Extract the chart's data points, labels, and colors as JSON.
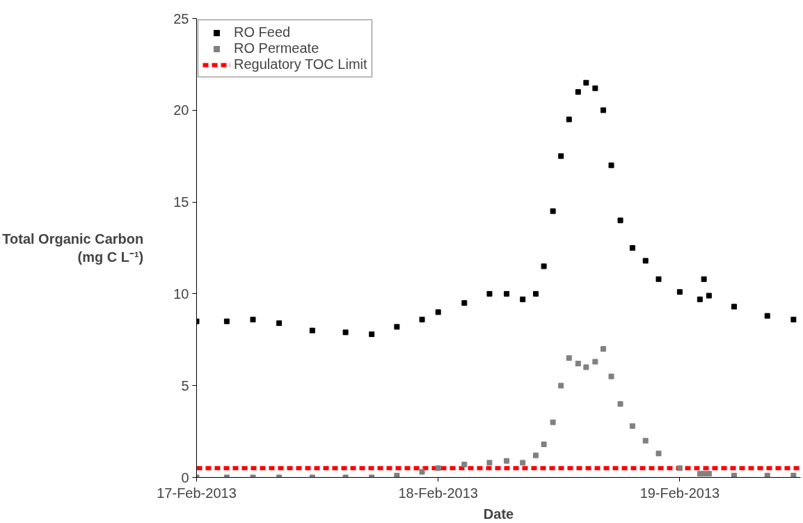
{
  "chart_data": {
    "type": "scatter",
    "marker": "square",
    "xlabel": "Date",
    "ylabel": "Total Organic Carbon (mg C L⁻¹)",
    "x": [
      "2013-02-17T00:00",
      "2013-02-17T03:00",
      "2013-02-17T05:36",
      "2013-02-17T08:12",
      "2013-02-17T11:30",
      "2013-02-17T14:48",
      "2013-02-17T17:24",
      "2013-02-17T19:54",
      "2013-02-17T22:24",
      "2013-02-18T00:00",
      "2013-02-18T02:36",
      "2013-02-18T05:06",
      "2013-02-18T06:48",
      "2013-02-18T08:24",
      "2013-02-18T09:42",
      "2013-02-18T10:30",
      "2013-02-18T11:24",
      "2013-02-18T12:12",
      "2013-02-18T13:00",
      "2013-02-18T13:54",
      "2013-02-18T14:42",
      "2013-02-18T15:36",
      "2013-02-18T16:24",
      "2013-02-18T17:12",
      "2013-02-18T18:06",
      "2013-02-18T19:18",
      "2013-02-18T20:36",
      "2013-02-18T21:54",
      "2013-02-19T00:00",
      "2013-02-19T02:00",
      "2013-02-19T02:24",
      "2013-02-19T02:54",
      "2013-02-19T05:24",
      "2013-02-19T08:42",
      "2013-02-19T11:18"
    ],
    "series": [
      {
        "name": "RO Feed",
        "color": "#000000",
        "values": [
          8.5,
          8.5,
          8.6,
          8.4,
          8.0,
          7.9,
          7.8,
          8.2,
          8.6,
          9.0,
          9.5,
          10.0,
          10.0,
          9.7,
          10.0,
          11.5,
          14.5,
          17.5,
          19.5,
          21.0,
          21.5,
          21.2,
          20.0,
          17.0,
          14.0,
          12.5,
          11.8,
          10.8,
          10.1,
          9.7,
          10.8,
          9.9,
          9.3,
          8.8,
          8.6
        ]
      },
      {
        "name": "RO Permeate",
        "color": "#808080",
        "values": [
          0,
          0,
          0,
          0,
          0,
          0,
          0,
          0.1,
          0.3,
          0.5,
          0.7,
          0.8,
          0.9,
          0.8,
          1.2,
          1.8,
          3.0,
          5.0,
          6.5,
          6.2,
          6.0,
          6.3,
          7.0,
          5.5,
          4.0,
          2.8,
          2.0,
          1.3,
          0.5,
          0.2,
          0.2,
          0.2,
          0.1,
          0.1,
          0.1
        ]
      }
    ],
    "ref_lines": [
      {
        "axis": "y",
        "value": 0.5,
        "label": "Regulatory TOC Limit",
        "color": "#ff0000",
        "line_style": "dashed"
      }
    ],
    "xlim": [
      "2013-02-17T00:00",
      "2013-02-19T12:00"
    ],
    "xticks": [
      {
        "value": "2013-02-17",
        "label": "17-Feb-2013"
      },
      {
        "value": "2013-02-18",
        "label": "18-Feb-2013"
      },
      {
        "value": "2013-02-19",
        "label": "19-Feb-2013"
      }
    ],
    "ylim": [
      0,
      25
    ],
    "yticks": [
      0,
      5,
      10,
      15,
      20,
      25
    ],
    "legend": "top left"
  }
}
